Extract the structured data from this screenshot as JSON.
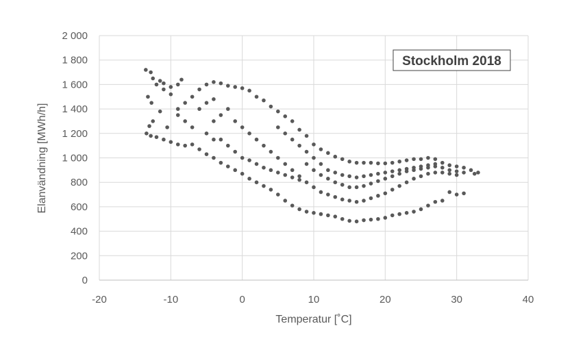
{
  "chart_data": {
    "type": "scatter",
    "title": "Stockholm 2018",
    "xlabel": "Temperatur [˚C]",
    "ylabel": "Elanvändning [MWh/h]",
    "xlim": [
      -20,
      40
    ],
    "ylim": [
      0,
      2000
    ],
    "x_ticks": [
      -20,
      -10,
      0,
      10,
      20,
      30,
      40
    ],
    "x_tick_labels": [
      "-20",
      "-10",
      "0",
      "10",
      "20",
      "30",
      "40"
    ],
    "y_ticks": [
      0,
      200,
      400,
      600,
      800,
      1000,
      1200,
      1400,
      1600,
      1800,
      2000
    ],
    "y_tick_labels": [
      "0",
      "200",
      "400",
      "600",
      "800",
      "1 000",
      "1 200",
      "1 400",
      "1 600",
      "1 800",
      "2 000"
    ],
    "grid": true,
    "marker_color": "#595959",
    "series": [
      {
        "points": [
          [
            -13.5,
            1720
          ],
          [
            -12.8,
            1700
          ],
          [
            -12.5,
            1650
          ],
          [
            -11.5,
            1630
          ],
          [
            -11,
            1610
          ],
          [
            -10,
            1580
          ],
          [
            -9,
            1600
          ],
          [
            -8.5,
            1640
          ],
          [
            -13.2,
            1500
          ],
          [
            -12.7,
            1450
          ],
          [
            -11.5,
            1380
          ],
          [
            -12.5,
            1300
          ],
          [
            -13,
            1260
          ],
          [
            -13.4,
            1200
          ],
          [
            -12.8,
            1180
          ],
          [
            -12,
            1170
          ],
          [
            -11,
            1150
          ],
          [
            -10,
            1130
          ],
          [
            -9,
            1110
          ],
          [
            -8,
            1100
          ],
          [
            -7,
            1110
          ],
          [
            -10.5,
            1250
          ],
          [
            -9,
            1350
          ],
          [
            -8,
            1450
          ],
          [
            -7,
            1500
          ],
          [
            -6,
            1560
          ],
          [
            -5,
            1600
          ],
          [
            -4,
            1620
          ],
          [
            -3,
            1610
          ],
          [
            -2,
            1590
          ],
          [
            -1,
            1580
          ],
          [
            0,
            1570
          ],
          [
            1,
            1550
          ],
          [
            2,
            1500
          ],
          [
            3,
            1470
          ],
          [
            4,
            1420
          ],
          [
            5,
            1380
          ],
          [
            6,
            1340
          ],
          [
            7,
            1300
          ],
          [
            8,
            1230
          ],
          [
            9,
            1180
          ],
          [
            10,
            1110
          ],
          [
            11,
            1070
          ],
          [
            12,
            1040
          ],
          [
            13,
            1010
          ],
          [
            14,
            990
          ],
          [
            15,
            970
          ],
          [
            16,
            960
          ],
          [
            17,
            960
          ],
          [
            18,
            960
          ],
          [
            19,
            955
          ],
          [
            20,
            955
          ],
          [
            21,
            960
          ],
          [
            22,
            970
          ],
          [
            23,
            980
          ],
          [
            24,
            990
          ],
          [
            25,
            990
          ],
          [
            26,
            1000
          ],
          [
            27,
            990
          ],
          [
            28,
            960
          ],
          [
            29,
            940
          ],
          [
            30,
            930
          ],
          [
            31,
            920
          ],
          [
            32,
            900
          ],
          [
            33,
            880
          ],
          [
            32.5,
            870
          ],
          [
            31,
            710
          ],
          [
            30,
            700
          ],
          [
            29,
            720
          ],
          [
            28,
            650
          ],
          [
            27,
            640
          ],
          [
            26,
            610
          ],
          [
            25,
            580
          ],
          [
            24,
            560
          ],
          [
            23,
            550
          ],
          [
            22,
            540
          ],
          [
            21,
            530
          ],
          [
            20,
            510
          ],
          [
            19,
            500
          ],
          [
            18,
            495
          ],
          [
            17,
            490
          ],
          [
            16,
            480
          ],
          [
            15,
            485
          ],
          [
            14,
            500
          ],
          [
            13,
            520
          ],
          [
            12,
            530
          ],
          [
            11,
            540
          ],
          [
            10,
            550
          ],
          [
            9,
            560
          ],
          [
            8,
            580
          ],
          [
            7,
            610
          ],
          [
            6,
            650
          ],
          [
            5,
            700
          ],
          [
            4,
            740
          ],
          [
            3,
            770
          ],
          [
            2,
            800
          ],
          [
            1,
            830
          ],
          [
            0,
            870
          ],
          [
            -1,
            900
          ],
          [
            -2,
            930
          ],
          [
            -3,
            960
          ],
          [
            -4,
            1000
          ],
          [
            -5,
            1030
          ],
          [
            -6,
            1070
          ],
          [
            -4,
            1300
          ],
          [
            -3,
            1350
          ],
          [
            -2,
            1400
          ],
          [
            -1,
            1300
          ],
          [
            0,
            1250
          ],
          [
            1,
            1200
          ],
          [
            2,
            1150
          ],
          [
            3,
            1100
          ],
          [
            4,
            1050
          ],
          [
            5,
            1000
          ],
          [
            6,
            950
          ],
          [
            7,
            900
          ],
          [
            8,
            850
          ],
          [
            9,
            800
          ],
          [
            10,
            760
          ],
          [
            11,
            720
          ],
          [
            12,
            700
          ],
          [
            13,
            680
          ],
          [
            14,
            660
          ],
          [
            15,
            650
          ],
          [
            16,
            640
          ],
          [
            17,
            650
          ],
          [
            18,
            670
          ],
          [
            19,
            690
          ],
          [
            20,
            710
          ],
          [
            21,
            740
          ],
          [
            22,
            770
          ],
          [
            23,
            800
          ],
          [
            24,
            830
          ],
          [
            25,
            850
          ],
          [
            26,
            870
          ],
          [
            27,
            880
          ],
          [
            28,
            880
          ],
          [
            29,
            870
          ],
          [
            30,
            860
          ],
          [
            -3,
            1150
          ],
          [
            -2,
            1100
          ],
          [
            -1,
            1050
          ],
          [
            0,
            1000
          ],
          [
            1,
            980
          ],
          [
            2,
            950
          ],
          [
            3,
            920
          ],
          [
            4,
            900
          ],
          [
            5,
            880
          ],
          [
            6,
            860
          ],
          [
            7,
            840
          ],
          [
            8,
            820
          ],
          [
            9,
            950
          ],
          [
            10,
            900
          ],
          [
            11,
            860
          ],
          [
            12,
            830
          ],
          [
            13,
            800
          ],
          [
            14,
            780
          ],
          [
            15,
            760
          ],
          [
            16,
            760
          ],
          [
            17,
            770
          ],
          [
            18,
            790
          ],
          [
            19,
            810
          ],
          [
            20,
            830
          ],
          [
            21,
            850
          ],
          [
            22,
            870
          ],
          [
            23,
            890
          ],
          [
            24,
            900
          ],
          [
            25,
            910
          ],
          [
            26,
            920
          ],
          [
            27,
            930
          ],
          [
            -5,
            1450
          ],
          [
            -4,
            1480
          ],
          [
            -6,
            1400
          ],
          [
            -5,
            1200
          ],
          [
            -4,
            1150
          ],
          [
            -7,
            1250
          ],
          [
            -8,
            1300
          ],
          [
            -9,
            1400
          ],
          [
            -10,
            1520
          ],
          [
            -11,
            1560
          ],
          [
            -12,
            1600
          ],
          [
            5,
            1250
          ],
          [
            6,
            1200
          ],
          [
            7,
            1150
          ],
          [
            8,
            1100
          ],
          [
            9,
            1050
          ],
          [
            10,
            1000
          ],
          [
            11,
            950
          ],
          [
            12,
            900
          ],
          [
            13,
            880
          ],
          [
            14,
            860
          ],
          [
            15,
            850
          ],
          [
            16,
            840
          ],
          [
            17,
            850
          ],
          [
            18,
            860
          ],
          [
            19,
            870
          ],
          [
            20,
            880
          ],
          [
            21,
            890
          ],
          [
            22,
            900
          ],
          [
            23,
            910
          ],
          [
            24,
            920
          ],
          [
            25,
            930
          ],
          [
            26,
            940
          ],
          [
            27,
            950
          ],
          [
            28,
            920
          ],
          [
            29,
            900
          ],
          [
            30,
            890
          ],
          [
            31,
            880
          ]
        ]
      }
    ]
  }
}
